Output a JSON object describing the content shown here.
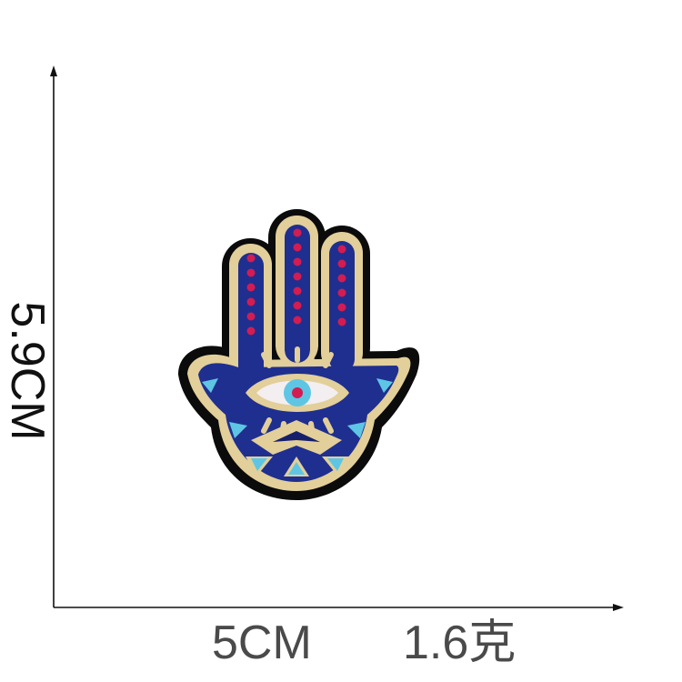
{
  "dimensions": {
    "height_label": "5.9CM",
    "width_label": "5CM",
    "weight_label": "1.6克"
  },
  "product": {
    "icon": "hamsa-hand-evil-eye-patch-icon",
    "colors": {
      "outline": "#0b0b0b",
      "gold_thread": "#e2cf9a",
      "navy": "#1f2f8f",
      "navy_dark": "#16206a",
      "pink_dots": "#d21c52",
      "light_blue": "#5ec6e4",
      "eye_white": "#f3eef0"
    }
  }
}
